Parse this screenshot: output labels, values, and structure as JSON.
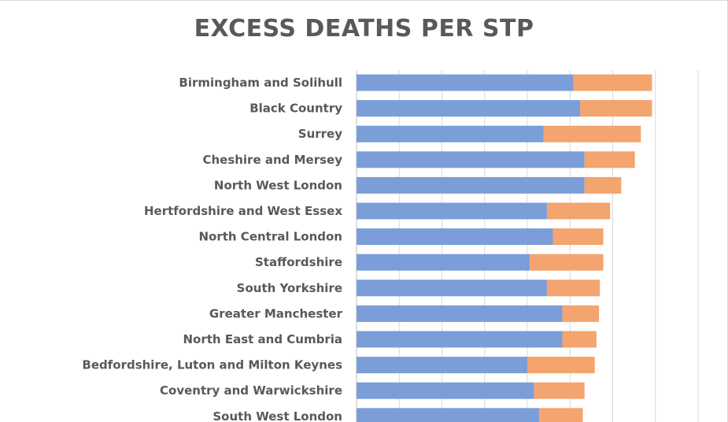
{
  "chart_data": {
    "type": "bar",
    "orientation": "horizontal",
    "stacked": true,
    "title": "EXCESS DEATHS PER STP",
    "xlabel": "",
    "ylabel": "",
    "xlim": [
      0,
      800
    ],
    "grid": true,
    "legend": "none",
    "categories": [
      "Birmingham and Solihull",
      "Black Country",
      "Surrey",
      "Cheshire and Mersey",
      "North West London",
      "Hertfordshire and West Essex",
      "North Central London",
      "Staffordshire",
      "South Yorkshire",
      "Greater Manchester",
      "North East and Cumbria",
      "Bedfordshire, Luton and Milton Keynes",
      "Coventry and Warwickshire",
      "South West London"
    ],
    "series": [
      {
        "color": "#7b9ed8",
        "values": [
          508,
          524,
          438,
          534,
          534,
          446,
          460,
          406,
          446,
          482,
          482,
          400,
          416,
          428
        ]
      },
      {
        "color": "#f4a46e",
        "values": [
          184,
          168,
          228,
          118,
          86,
          148,
          118,
          172,
          124,
          86,
          80,
          158,
          118,
          102
        ]
      }
    ]
  }
}
